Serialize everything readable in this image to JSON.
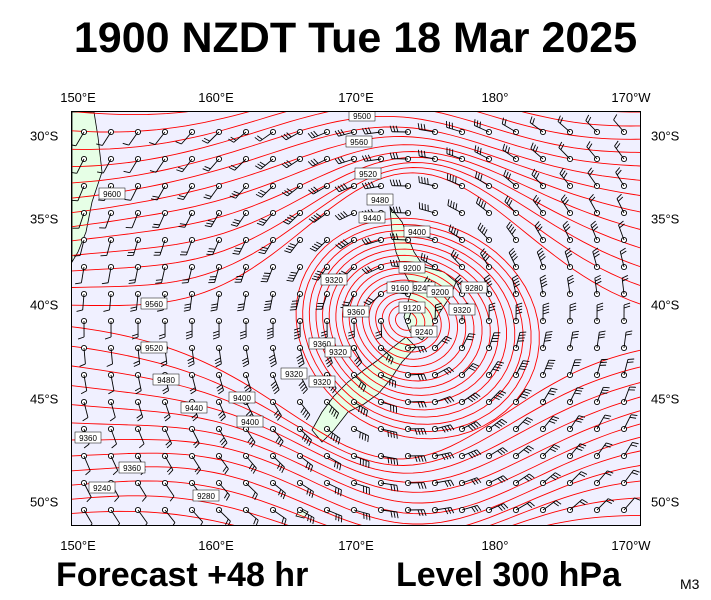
{
  "title": "1900 NZDT Tue 18 Mar 2025",
  "footer": {
    "forecast": "Forecast +48 hr",
    "level": "Level 300 hPa",
    "model": "M3"
  },
  "longitude_labels": [
    "150°E",
    "160°E",
    "170°E",
    "180°",
    "170°W"
  ],
  "latitude_labels": [
    "30°S",
    "35°S",
    "40°S",
    "45°S",
    "50°S"
  ],
  "contour_labels": [
    "9500",
    "9560",
    "9520",
    "9480",
    "9600",
    "9440",
    "9400",
    "9560",
    "9520",
    "9480",
    "9440",
    "9400",
    "9360",
    "9360",
    "9400",
    "9240",
    "9280",
    "9320",
    "9320",
    "9360",
    "9320",
    "9360",
    "9320",
    "9200",
    "9240",
    "9160",
    "9200",
    "9240",
    "9120",
    "9280",
    "9320"
  ],
  "colors": {
    "contour": "#ff0000",
    "land": "#e6ffe6",
    "ocean": "#f0f0ff",
    "wind_barb": "#000000"
  },
  "chart_data": {
    "type": "map",
    "lon_ticks": [
      150,
      160,
      170,
      180,
      190
    ],
    "lat_ticks": [
      -30,
      -35,
      -40,
      -45,
      -50
    ],
    "low_center": {
      "lon": 173,
      "lat": -40.5
    }
  }
}
